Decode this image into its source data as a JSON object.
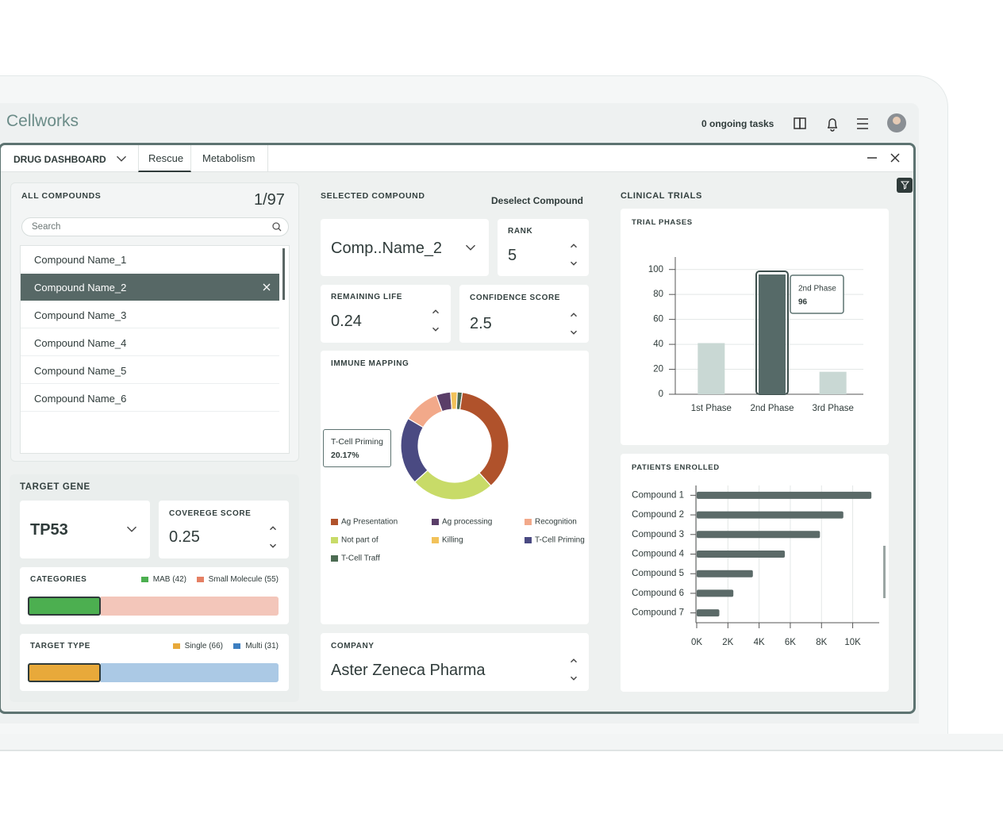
{
  "header": {
    "logo": "Cellworks",
    "tasks": "0 ongoing tasks"
  },
  "tabs": [
    "DRUG DASHBOARD",
    "Rescue",
    "Metabolism"
  ],
  "all_compounds": {
    "title": "ALL COMPOUNDS",
    "count": "1/97",
    "search_placeholder": "Search",
    "items": [
      "Compound Name_1",
      "Compound Name_2",
      "Compound Name_3",
      "Compound Name_4",
      "Compound Name_5",
      "Compound Name_6"
    ],
    "selected": 1
  },
  "target_gene": {
    "title": "TARGET GENE",
    "gene": "TP53",
    "coverage_label": "COVEREGE SCORE",
    "coverage_value": 0.25,
    "categories": {
      "title": "CATEGORIES",
      "legend": [
        {
          "label": "MAB (42)",
          "color": "#4caf50",
          "bar_color": "#4caf50"
        },
        {
          "label": "Small Molecule (55)",
          "color": "#e58064",
          "bar_color": "#f3c6ba"
        }
      ]
    },
    "target_type": {
      "title": "TARGET TYPE",
      "legend": [
        {
          "label": "Single (66)",
          "color": "#e8a93a",
          "bar_color": "#e8a93a"
        },
        {
          "label": "Multi (31)",
          "color": "#3d7fc1",
          "bar_color": "#abc9e5"
        }
      ]
    }
  },
  "selected_compound": {
    "title": "SELECTED COMPOUND",
    "deselect": "Deselect Compound",
    "compound": "Comp..Name_2",
    "rank_label": "RANK",
    "rank": 5,
    "remaining_life_label": "REMAINING LIFE",
    "remaining_life": 0.24,
    "confidence_label": "CONFIDENCE SCORE",
    "confidence": 2.5
  },
  "immune_mapping": {
    "type": "donut",
    "title": "IMMUNE MAPPING",
    "categories": [
      "Ag Presentation",
      "Ag processing",
      "Recognition",
      "Not part of",
      "Killing",
      "T-Cell Priming",
      "T-Cell Traff"
    ],
    "values": [
      36,
      4.33,
      11,
      25,
      2,
      20.17,
      1.5
    ],
    "colors": [
      "#b0522b",
      "#5a3e68",
      "#f2a98a",
      "#c8db68",
      "#f2c25a",
      "#4a4a82",
      "#4c6b52"
    ],
    "tooltip": {
      "category": "T-Cell Priming",
      "value_label": "20.17%"
    }
  },
  "company": {
    "label": "COMPANY",
    "name": "Aster Zeneca Pharma"
  },
  "clinical_trials": {
    "title": "CLINICAL TRIALS",
    "trial_phases": {
      "type": "bar",
      "title": "TRIAL PHASES",
      "categories": [
        "1st Phase",
        "2nd Phase",
        "3rd Phase"
      ],
      "values": [
        41,
        96,
        18
      ],
      "colors": [
        "#c9d8d4",
        "#566a68",
        "#c9d8d4"
      ],
      "ylim": [
        0,
        110
      ],
      "yticks": [
        0,
        20,
        40,
        60,
        80,
        100
      ],
      "grid": true,
      "tooltip": {
        "category": "2nd Phase",
        "value": 96
      }
    },
    "patients_enrolled": {
      "type": "bar",
      "orientation": "horizontal",
      "title": "PATIENTS ENROLLED",
      "categories": [
        "Compound 1",
        "Compound 2",
        "Compound 3",
        "Compound 4",
        "Compound 5",
        "Compound 6",
        "Compound 7"
      ],
      "values": [
        11200,
        9400,
        7900,
        5650,
        3600,
        2350,
        1450
      ],
      "color": "#5b6a68",
      "xlim": [
        0,
        11700
      ],
      "xticks": [
        {
          "value": 0,
          "label": "0K"
        },
        {
          "value": 2000,
          "label": "2K"
        },
        {
          "value": 4000,
          "label": "4K"
        },
        {
          "value": 6000,
          "label": "6K"
        },
        {
          "value": 8000,
          "label": "8K"
        },
        {
          "value": 10000,
          "label": "10K"
        }
      ],
      "grid": true
    }
  }
}
